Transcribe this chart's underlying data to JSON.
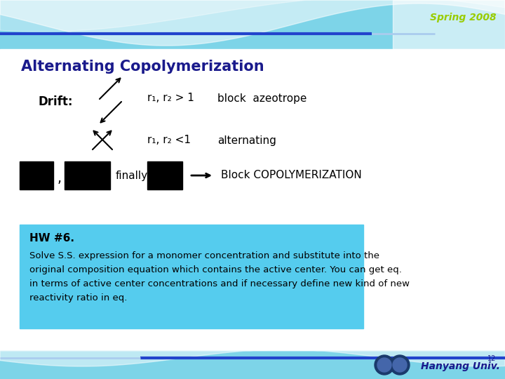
{
  "title": "Alternating Copolymerization",
  "title_color": "#1a1a8c",
  "title_fontsize": 15,
  "spring_text": "Spring 2008",
  "spring_color": "#99cc00",
  "bg_top_color": "#7dd4e8",
  "bg_white_color": "#ffffff",
  "drift_label": "Drift:",
  "line1_text": "r₁, r₂ > 1",
  "line1_label": "block  azeotrope",
  "line2_text": "r₁, r₂ <1",
  "line2_label": "alternating",
  "finally_text": "finally",
  "block_label": "Block COPOLYMERIZATION",
  "hw_title": "HW #6.",
  "hw_body": "Solve S.S. expression for a monomer concentration and substitute into the\noriginal composition equation which contains the active center. You can get eq.\nin terms of active center concentrations and if necessary define new kind of new\nreactivity ratio in eq.",
  "hw_box_color": "#55CCEE",
  "footer_text": "Hanyang Univ.",
  "footer_super": "12",
  "footer_color": "#1a1a8c",
  "blue_bar_color": "#2244cc",
  "light_bar_color": "#aaccee"
}
